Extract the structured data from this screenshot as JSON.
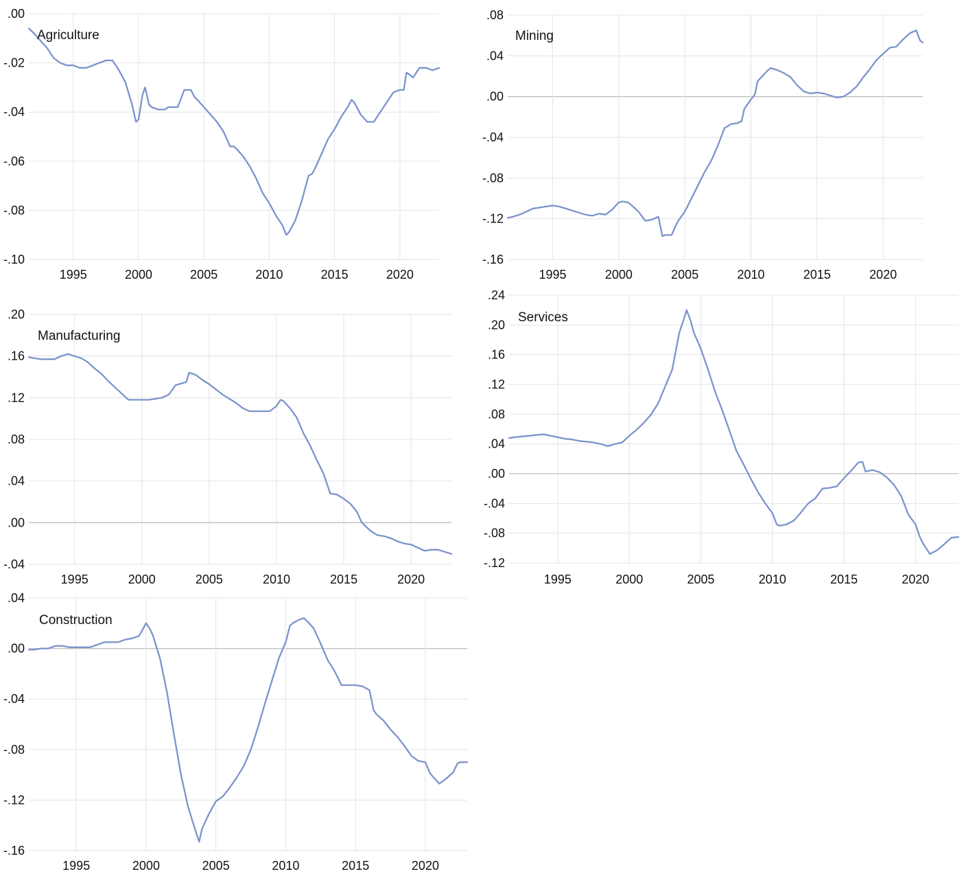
{
  "colors": {
    "line": "#7b93cc",
    "grid": "#e3e3e3",
    "zero": "#bdbdbd",
    "text": "#111111"
  },
  "chart_data": [
    {
      "type": "line",
      "title": "Agriculture",
      "xlim": [
        1991.6,
        2023.0
      ],
      "ylim": [
        -0.1,
        0.0
      ],
      "xticks": [
        1995,
        2000,
        2005,
        2010,
        2015,
        2020
      ],
      "xtick_labels": [
        "1995",
        "2000",
        "2005",
        "2010",
        "2015",
        "2020"
      ],
      "yticks": [
        0.0,
        -0.02,
        -0.04,
        -0.06,
        -0.08,
        -0.1
      ],
      "ytick_labels": [
        ".00",
        "-.02",
        "-.04",
        "-.06",
        "-.08",
        "-.10"
      ],
      "zero_line": false,
      "x": [
        1991.6,
        1992.0,
        1992.5,
        1993.0,
        1993.5,
        1994.0,
        1994.5,
        1995.0,
        1995.5,
        1996.0,
        1996.5,
        1997.0,
        1997.5,
        1997.8,
        1998.0,
        1998.5,
        1999.0,
        1999.5,
        1999.8,
        2000.0,
        2000.3,
        2000.5,
        2000.8,
        2001.0,
        2001.5,
        2002.0,
        2002.3,
        2002.5,
        2003.0,
        2003.5,
        2004.0,
        2004.3,
        2004.5,
        2005.0,
        2005.5,
        2006.0,
        2006.5,
        2007.0,
        2007.3,
        2007.5,
        2008.0,
        2008.5,
        2009.0,
        2009.5,
        2010.0,
        2010.5,
        2011.0,
        2011.3,
        2011.5,
        2012.0,
        2012.5,
        2013.0,
        2013.3,
        2013.5,
        2014.0,
        2014.5,
        2015.0,
        2015.5,
        2016.0,
        2016.3,
        2016.5,
        2017.0,
        2017.5,
        2018.0,
        2018.5,
        2019.0,
        2019.5,
        2020.0,
        2020.3,
        2020.5,
        2020.8,
        2021.0,
        2021.5,
        2022.0,
        2022.5,
        2023.0
      ],
      "y": [
        -0.006,
        -0.008,
        -0.011,
        -0.014,
        -0.018,
        -0.02,
        -0.021,
        -0.021,
        -0.022,
        -0.022,
        -0.021,
        -0.02,
        -0.019,
        -0.019,
        -0.019,
        -0.023,
        -0.028,
        -0.037,
        -0.044,
        -0.043,
        -0.033,
        -0.03,
        -0.037,
        -0.038,
        -0.039,
        -0.039,
        -0.038,
        -0.038,
        -0.038,
        -0.031,
        -0.031,
        -0.034,
        -0.035,
        -0.038,
        -0.041,
        -0.044,
        -0.048,
        -0.054,
        -0.054,
        -0.055,
        -0.058,
        -0.062,
        -0.067,
        -0.073,
        -0.077,
        -0.082,
        -0.086,
        -0.09,
        -0.089,
        -0.084,
        -0.076,
        -0.066,
        -0.065,
        -0.063,
        -0.057,
        -0.051,
        -0.047,
        -0.042,
        -0.038,
        -0.035,
        -0.036,
        -0.041,
        -0.044,
        -0.044,
        -0.04,
        -0.036,
        -0.032,
        -0.031,
        -0.031,
        -0.024,
        -0.025,
        -0.026,
        -0.022,
        -0.022,
        -0.023,
        -0.022
      ]
    },
    {
      "type": "line",
      "title": "Mining",
      "xlim": [
        1991.6,
        2023.0
      ],
      "ylim": [
        -0.16,
        0.08
      ],
      "xticks": [
        1995,
        2000,
        2005,
        2010,
        2015,
        2020
      ],
      "xtick_labels": [
        "1995",
        "2000",
        "2005",
        "2010",
        "2015",
        "2020"
      ],
      "yticks": [
        0.08,
        0.04,
        0.0,
        -0.04,
        -0.08,
        -0.12,
        -0.16
      ],
      "ytick_labels": [
        ".08",
        ".04",
        ".00",
        "-.04",
        "-.08",
        "-.12",
        "-.16"
      ],
      "zero_line": true,
      "x": [
        1991.6,
        1992.0,
        1992.5,
        1993.0,
        1993.5,
        1994.0,
        1994.5,
        1995.0,
        1995.5,
        1996.0,
        1996.5,
        1997.0,
        1997.5,
        1998.0,
        1998.5,
        1999.0,
        1999.5,
        2000.0,
        2000.3,
        2000.7,
        2001.0,
        2001.5,
        2002.0,
        2002.5,
        2003.0,
        2003.3,
        2003.5,
        2004.0,
        2004.3,
        2004.5,
        2005.0,
        2005.5,
        2006.0,
        2006.5,
        2007.0,
        2007.5,
        2008.0,
        2008.5,
        2009.0,
        2009.3,
        2009.5,
        2010.0,
        2010.3,
        2010.5,
        2011.0,
        2011.3,
        2011.5,
        2012.0,
        2012.5,
        2013.0,
        2013.5,
        2014.0,
        2014.5,
        2015.0,
        2015.5,
        2016.0,
        2016.5,
        2017.0,
        2017.5,
        2018.0,
        2018.5,
        2019.0,
        2019.5,
        2020.0,
        2020.5,
        2021.0,
        2021.5,
        2022.0,
        2022.5,
        2022.8,
        2023.0
      ],
      "y": [
        -0.119,
        -0.118,
        -0.116,
        -0.113,
        -0.11,
        -0.109,
        -0.108,
        -0.107,
        -0.108,
        -0.11,
        -0.112,
        -0.114,
        -0.116,
        -0.117,
        -0.115,
        -0.116,
        -0.111,
        -0.104,
        -0.103,
        -0.104,
        -0.107,
        -0.113,
        -0.122,
        -0.121,
        -0.118,
        -0.137,
        -0.136,
        -0.136,
        -0.127,
        -0.122,
        -0.113,
        -0.1,
        -0.087,
        -0.074,
        -0.063,
        -0.048,
        -0.031,
        -0.027,
        -0.026,
        -0.024,
        -0.012,
        -0.003,
        0.002,
        0.015,
        0.022,
        0.026,
        0.028,
        0.026,
        0.023,
        0.019,
        0.011,
        0.005,
        0.003,
        0.004,
        0.003,
        0.001,
        -0.001,
        0.0,
        0.004,
        0.01,
        0.019,
        0.027,
        0.036,
        0.042,
        0.048,
        0.049,
        0.056,
        0.062,
        0.065,
        0.055,
        0.053
      ]
    },
    {
      "type": "line",
      "title": "Manufacturing",
      "xlim": [
        1991.6,
        2023.0
      ],
      "ylim": [
        -0.04,
        0.2
      ],
      "xticks": [
        1995,
        2000,
        2005,
        2010,
        2015,
        2020
      ],
      "xtick_labels": [
        "1995",
        "2000",
        "2005",
        "2010",
        "2015",
        "2020"
      ],
      "yticks": [
        0.2,
        0.16,
        0.12,
        0.08,
        0.04,
        0.0,
        -0.04
      ],
      "ytick_labels": [
        ".20",
        ".16",
        ".12",
        ".08",
        ".04",
        ".00",
        "-.04"
      ],
      "zero_line": true,
      "x": [
        1991.6,
        1992.0,
        1992.5,
        1993.0,
        1993.5,
        1994.0,
        1994.5,
        1995.0,
        1995.5,
        1996.0,
        1996.5,
        1997.0,
        1997.5,
        1998.0,
        1998.5,
        1999.0,
        1999.5,
        2000.0,
        2000.5,
        2001.0,
        2001.5,
        2002.0,
        2002.5,
        2003.0,
        2003.3,
        2003.5,
        2004.0,
        2004.5,
        2005.0,
        2005.5,
        2006.0,
        2006.5,
        2007.0,
        2007.5,
        2008.0,
        2008.5,
        2009.0,
        2009.5,
        2010.0,
        2010.3,
        2010.5,
        2011.0,
        2011.5,
        2012.0,
        2012.5,
        2013.0,
        2013.5,
        2014.0,
        2014.5,
        2015.0,
        2015.5,
        2016.0,
        2016.3,
        2016.5,
        2017.0,
        2017.5,
        2018.0,
        2018.5,
        2019.0,
        2019.5,
        2020.0,
        2020.5,
        2021.0,
        2021.5,
        2022.0,
        2022.5,
        2023.0
      ],
      "y": [
        0.159,
        0.158,
        0.157,
        0.157,
        0.157,
        0.16,
        0.162,
        0.16,
        0.158,
        0.154,
        0.148,
        0.143,
        0.136,
        0.13,
        0.124,
        0.118,
        0.118,
        0.118,
        0.118,
        0.119,
        0.12,
        0.123,
        0.132,
        0.134,
        0.135,
        0.144,
        0.142,
        0.137,
        0.133,
        0.128,
        0.123,
        0.119,
        0.115,
        0.11,
        0.107,
        0.107,
        0.107,
        0.107,
        0.112,
        0.118,
        0.117,
        0.11,
        0.101,
        0.086,
        0.074,
        0.06,
        0.047,
        0.028,
        0.027,
        0.023,
        0.018,
        0.01,
        0.001,
        -0.002,
        -0.008,
        -0.012,
        -0.013,
        -0.015,
        -0.018,
        -0.02,
        -0.021,
        -0.024,
        -0.027,
        -0.026,
        -0.026,
        -0.028,
        -0.03
      ]
    },
    {
      "type": "line",
      "title": "Services",
      "xlim": [
        1991.6,
        2023.0
      ],
      "ylim": [
        -0.12,
        0.24
      ],
      "xticks": [
        1995,
        2000,
        2005,
        2010,
        2015,
        2020
      ],
      "xtick_labels": [
        "1995",
        "2000",
        "2005",
        "2010",
        "2015",
        "2020"
      ],
      "yticks": [
        0.24,
        0.2,
        0.16,
        0.12,
        0.08,
        0.04,
        0.0,
        -0.04,
        -0.08,
        -0.12
      ],
      "ytick_labels": [
        ".24",
        ".20",
        ".16",
        ".12",
        ".08",
        ".04",
        ".00",
        "-.04",
        "-.08",
        "-.12"
      ],
      "zero_line": true,
      "x": [
        1991.6,
        1992.0,
        1992.5,
        1993.0,
        1993.5,
        1994.0,
        1994.5,
        1995.0,
        1995.5,
        1996.0,
        1996.5,
        1997.0,
        1997.5,
        1998.0,
        1998.5,
        1999.0,
        1999.5,
        2000.0,
        2000.5,
        2001.0,
        2001.5,
        2002.0,
        2002.5,
        2003.0,
        2003.5,
        2003.8,
        2004.0,
        2004.3,
        2004.5,
        2005.0,
        2005.5,
        2006.0,
        2006.5,
        2007.0,
        2007.5,
        2008.0,
        2008.5,
        2009.0,
        2009.5,
        2010.0,
        2010.3,
        2010.5,
        2011.0,
        2011.5,
        2012.0,
        2012.5,
        2013.0,
        2013.5,
        2014.0,
        2014.5,
        2015.0,
        2015.5,
        2016.0,
        2016.3,
        2016.5,
        2017.0,
        2017.5,
        2018.0,
        2018.5,
        2019.0,
        2019.5,
        2020.0,
        2020.3,
        2020.5,
        2021.0,
        2021.5,
        2022.0,
        2022.5,
        2023.0
      ],
      "y": [
        0.048,
        0.049,
        0.05,
        0.051,
        0.052,
        0.053,
        0.051,
        0.049,
        0.047,
        0.046,
        0.044,
        0.043,
        0.042,
        0.04,
        0.037,
        0.04,
        0.042,
        0.051,
        0.059,
        0.068,
        0.079,
        0.094,
        0.117,
        0.14,
        0.19,
        0.207,
        0.22,
        0.205,
        0.19,
        0.168,
        0.14,
        0.11,
        0.085,
        0.058,
        0.03,
        0.012,
        -0.007,
        -0.025,
        -0.04,
        -0.053,
        -0.068,
        -0.07,
        -0.068,
        -0.063,
        -0.052,
        -0.04,
        -0.033,
        -0.02,
        -0.019,
        -0.017,
        -0.006,
        0.004,
        0.015,
        0.016,
        0.003,
        0.005,
        0.002,
        -0.005,
        -0.015,
        -0.03,
        -0.055,
        -0.068,
        -0.085,
        -0.093,
        -0.108,
        -0.103,
        -0.095,
        -0.086,
        -0.085
      ]
    },
    {
      "type": "line",
      "title": "Construction",
      "xlim": [
        1991.6,
        2023.0
      ],
      "ylim": [
        -0.16,
        0.04
      ],
      "xticks": [
        1995,
        2000,
        2005,
        2010,
        2015,
        2020
      ],
      "xtick_labels": [
        "1995",
        "2000",
        "2005",
        "2010",
        "2015",
        "2020"
      ],
      "yticks": [
        0.04,
        0.0,
        -0.04,
        -0.08,
        -0.12,
        -0.16
      ],
      "ytick_labels": [
        ".04",
        ".00",
        "-.04",
        "-.08",
        "-.12",
        "-.16"
      ],
      "zero_line": true,
      "x": [
        1991.6,
        1992.0,
        1992.5,
        1993.0,
        1993.5,
        1994.0,
        1994.5,
        1995.0,
        1995.5,
        1996.0,
        1996.5,
        1997.0,
        1997.5,
        1998.0,
        1998.5,
        1999.0,
        1999.5,
        2000.0,
        2000.3,
        2000.5,
        2001.0,
        2001.5,
        2002.0,
        2002.5,
        2003.0,
        2003.5,
        2003.8,
        2004.0,
        2004.5,
        2005.0,
        2005.5,
        2006.0,
        2006.5,
        2007.0,
        2007.5,
        2008.0,
        2008.5,
        2009.0,
        2009.5,
        2010.0,
        2010.3,
        2010.5,
        2011.0,
        2011.3,
        2011.5,
        2012.0,
        2012.5,
        2013.0,
        2013.5,
        2014.0,
        2014.5,
        2015.0,
        2015.5,
        2016.0,
        2016.3,
        2016.5,
        2017.0,
        2017.5,
        2018.0,
        2018.5,
        2019.0,
        2019.5,
        2020.0,
        2020.3,
        2020.5,
        2021.0,
        2021.5,
        2022.0,
        2022.3,
        2022.5,
        2023.0
      ],
      "y": [
        -0.001,
        -0.001,
        0.0,
        0.0,
        0.002,
        0.002,
        0.001,
        0.001,
        0.001,
        0.001,
        0.003,
        0.005,
        0.005,
        0.005,
        0.007,
        0.008,
        0.01,
        0.02,
        0.015,
        0.01,
        -0.008,
        -0.035,
        -0.068,
        -0.1,
        -0.125,
        -0.143,
        -0.153,
        -0.143,
        -0.131,
        -0.121,
        -0.117,
        -0.11,
        -0.102,
        -0.093,
        -0.08,
        -0.063,
        -0.044,
        -0.026,
        -0.008,
        0.005,
        0.018,
        0.02,
        0.023,
        0.024,
        0.022,
        0.016,
        0.004,
        -0.009,
        -0.018,
        -0.029,
        -0.029,
        -0.029,
        -0.03,
        -0.033,
        -0.049,
        -0.052,
        -0.057,
        -0.064,
        -0.07,
        -0.077,
        -0.085,
        -0.089,
        -0.09,
        -0.098,
        -0.101,
        -0.107,
        -0.103,
        -0.098,
        -0.091,
        -0.09,
        -0.09
      ]
    }
  ]
}
